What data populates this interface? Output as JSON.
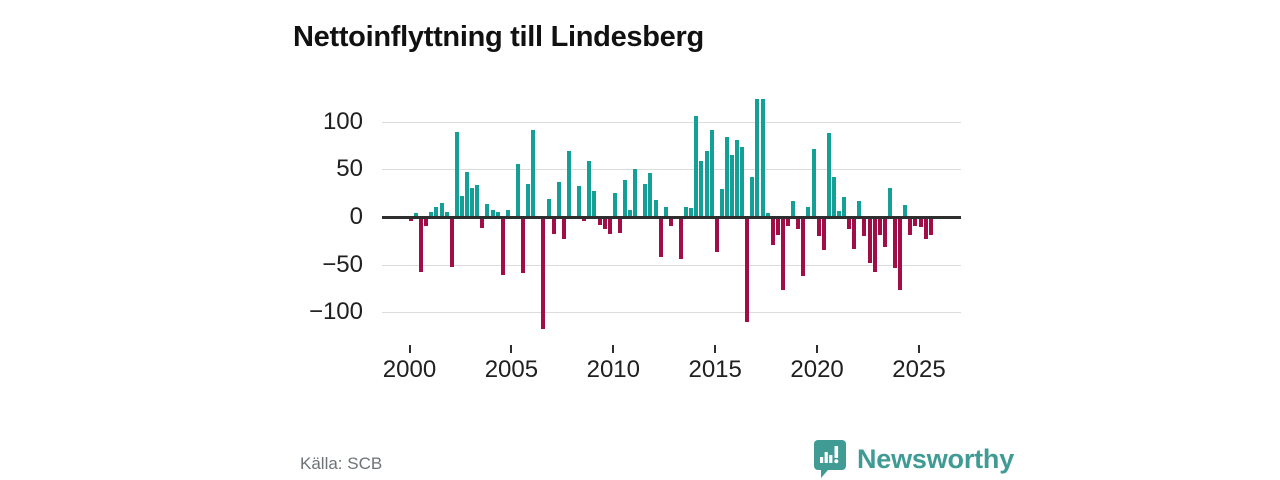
{
  "page": {
    "title": "Nettoinflyttning till Lindesberg",
    "source_label": "Källa: SCB",
    "brand": {
      "name": "Newsworthy",
      "logo_icon": "speech-bubble-bar-chart-icon"
    }
  },
  "colors": {
    "positive_bar": "#14a096",
    "negative_bar": "#a10d47",
    "axis": "#2e2e2e",
    "gridline": "#dcdcdc",
    "brand_teal": "#3f9b94",
    "title_text": "#111111",
    "source_text": "#6e7377"
  },
  "chart_data": {
    "type": "bar",
    "title": "Nettoinflyttning till Lindesberg",
    "unit": "persons (net migration per quarter)",
    "frequency": "quarterly",
    "start_year": 2000,
    "end_year": 2025,
    "xlabel": "",
    "ylabel": "",
    "ylim": [
      -134,
      138
    ],
    "grid": true,
    "y_ticks": [
      100,
      50,
      0,
      -50,
      -100
    ],
    "x_ticks": [
      2000,
      2005,
      2010,
      2015,
      2020,
      2025
    ],
    "values": [
      -4,
      4,
      -58,
      -9,
      5,
      10,
      15,
      5,
      -52,
      89,
      22,
      47,
      30,
      34,
      -12,
      14,
      7,
      5,
      -61,
      7,
      0,
      56,
      -59,
      35,
      91,
      0,
      -117,
      19,
      -18,
      37,
      -23,
      69,
      0,
      33,
      -4,
      59,
      27,
      -8,
      -13,
      -18,
      25,
      -17,
      39,
      7,
      50,
      0,
      35,
      46,
      18,
      -42,
      11,
      -9,
      0,
      -44,
      11,
      9,
      106,
      59,
      69,
      91,
      -37,
      29,
      84,
      65,
      81,
      73,
      -110,
      42,
      124,
      124,
      4,
      -29,
      -19,
      -76,
      -9,
      17,
      -13,
      -62,
      11,
      71,
      -20,
      -35,
      88,
      42,
      6,
      21,
      -13,
      -34,
      17,
      -20,
      -48,
      -58,
      -19,
      -31,
      30,
      -53,
      -77,
      13,
      -19,
      -9,
      -10,
      -23,
      -19,
      0
    ]
  }
}
